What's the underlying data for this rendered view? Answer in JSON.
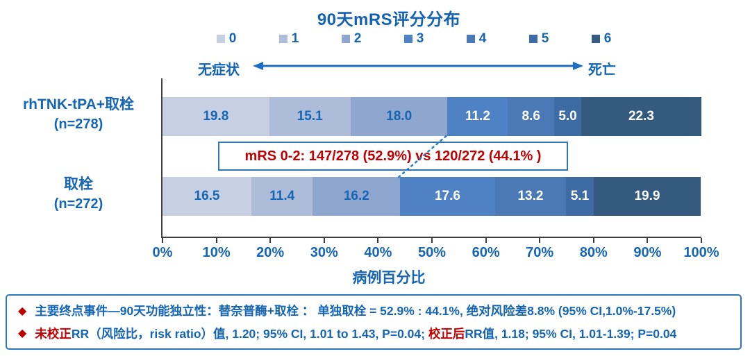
{
  "title": "90天mRS评分分布",
  "scale": {
    "left": "无症状",
    "right": "死亡"
  },
  "legend": {
    "items": [
      {
        "label": "0",
        "color": "#c7cfe2"
      },
      {
        "label": "1",
        "color": "#aebcd9"
      },
      {
        "label": "2",
        "color": "#8fa6ce"
      },
      {
        "label": "3",
        "color": "#4e82c4"
      },
      {
        "label": "4",
        "color": "#4a79b6"
      },
      {
        "label": "5",
        "color": "#3e6ba3"
      },
      {
        "label": "6",
        "color": "#345a80"
      }
    ]
  },
  "chart_data": {
    "type": "bar",
    "orientation": "horizontal-stacked",
    "title": "90天mRS评分分布",
    "categories": [
      "0",
      "1",
      "2",
      "3",
      "4",
      "5",
      "6"
    ],
    "colors": [
      "#c7cfe2",
      "#aebcd9",
      "#8fa6ce",
      "#4e82c4",
      "#4a79b6",
      "#3e6ba3",
      "#345a80"
    ],
    "series": [
      {
        "name": "rhTNK-tPA+取栓",
        "n_label": "(n=278)",
        "values": [
          19.8,
          15.1,
          18.0,
          11.2,
          8.6,
          5.0,
          22.3
        ],
        "labels": [
          "19.8",
          "15.1",
          "18.0",
          "11.2",
          "8.6",
          "5.0",
          "22.3"
        ]
      },
      {
        "name": "取栓",
        "n_label": "(n=272)",
        "values": [
          16.5,
          11.4,
          16.2,
          17.6,
          13.2,
          5.1,
          19.9
        ],
        "labels": [
          "16.5",
          "11.4",
          "16.2",
          "17.6",
          "13.2",
          "5.1",
          "19.9"
        ]
      }
    ],
    "xlabel": "病例百分比",
    "xlim": [
      0,
      100
    ],
    "x_ticks": [
      "0%",
      "10%",
      "20%",
      "30%",
      "40%",
      "50%",
      "60%",
      "70%",
      "80%",
      "90%",
      "100%"
    ],
    "annotation": "mRS 0-2: 147/278 (52.9%) vs 120/272 (44.1% )",
    "connector_boundary_segments": 3
  },
  "notes": {
    "bullet": "◆",
    "lines": [
      {
        "runs": [
          {
            "text": "主要终点事件—90天功能独立性：替奈普酶+取栓 ： 单独取栓 = 52.9% : 44.1%, 绝对风险差8.8% (95% CI,1.0%-17.5%)",
            "color": "blue"
          }
        ]
      },
      {
        "runs": [
          {
            "text": "未校正",
            "color": "red"
          },
          {
            "text": "RR（风险比，risk ratio）值, 1.20; 95% CI, 1.01 to 1.43, P=0.04; ",
            "color": "blue"
          },
          {
            "text": "校正后",
            "color": "red"
          },
          {
            "text": "RR值, 1.18; 95% CI, 1.01-1.39; P=0.04",
            "color": "blue"
          }
        ]
      }
    ]
  },
  "colors": {
    "text_blue": "#1565b5",
    "red": "#c00000",
    "axis_gray": "#3f3f3f",
    "box_border": "#2e75b6",
    "arrow_blue": "#1b6ec2",
    "connector_blue": "#2b7bc4"
  }
}
